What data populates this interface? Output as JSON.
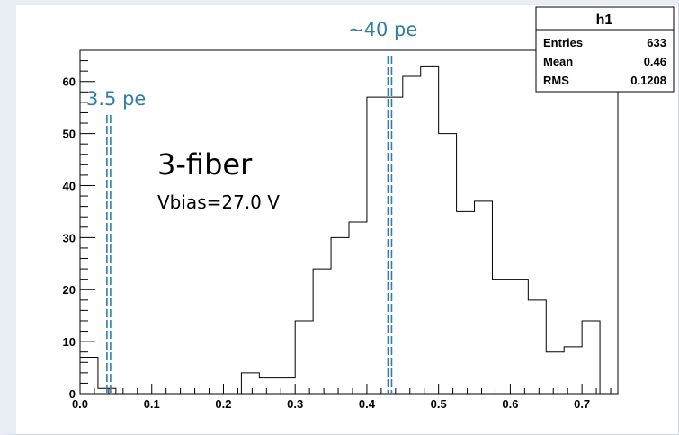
{
  "chart_data": {
    "type": "histogram",
    "title": "",
    "xlabel": "",
    "ylabel": "",
    "xlim": [
      0.0,
      0.75
    ],
    "ylim": [
      0,
      66
    ],
    "bin_width": 0.025,
    "x_bin_edges_start": 0.0,
    "values": [
      7,
      1,
      0,
      0,
      0,
      0,
      0,
      0,
      0,
      4,
      3,
      3,
      14,
      24,
      30,
      33,
      57,
      57,
      61,
      63,
      50,
      35,
      37,
      22,
      22,
      18,
      8,
      9,
      14
    ],
    "x_ticks": [
      "0.0",
      "0.1",
      "0.2",
      "0.3",
      "0.4",
      "0.5",
      "0.6",
      "0.7"
    ],
    "x_tick_values": [
      0.0,
      0.1,
      0.2,
      0.3,
      0.4,
      0.5,
      0.6,
      0.7
    ],
    "y_ticks": [
      "0",
      "10",
      "20",
      "30",
      "40",
      "50",
      "60"
    ],
    "y_tick_values": [
      0,
      10,
      20,
      30,
      40,
      50,
      60
    ],
    "markers": [
      {
        "label": "3.5 pe",
        "x": 0.04,
        "color": "#2f7ea3"
      },
      {
        "label": "~40 pe",
        "x": 0.432,
        "color": "#2f7ea3"
      }
    ],
    "annotations": {
      "title": "3-fiber",
      "subtitle": "Vbias=27.0 V"
    },
    "stats_box": {
      "name": "h1",
      "rows": [
        {
          "key": "Entries",
          "value": "633"
        },
        {
          "key": "Mean",
          "value": "0.46"
        },
        {
          "key": "RMS",
          "value": "0.1208"
        }
      ]
    }
  }
}
